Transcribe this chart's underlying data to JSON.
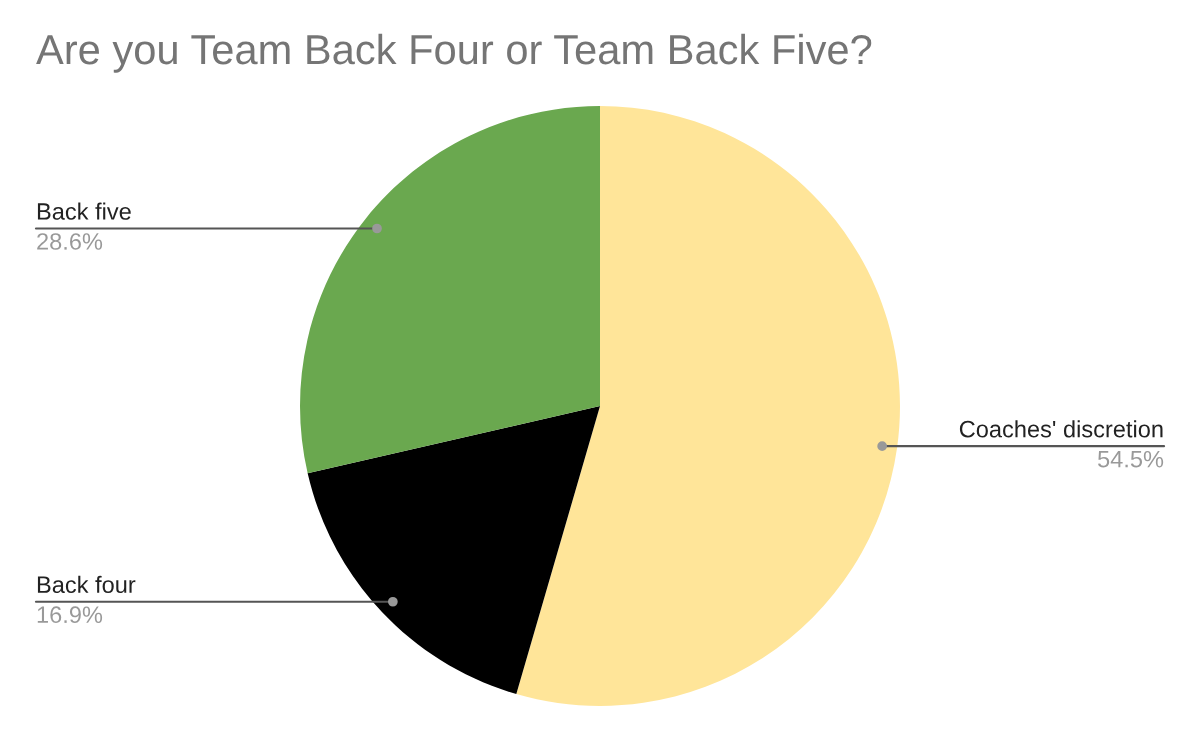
{
  "chart_data": {
    "type": "pie",
    "title": "Are you Team Back Four or Team Back Five?",
    "categories": [
      "Coaches' discretion",
      "Back four",
      "Back five"
    ],
    "values": [
      54.5,
      16.9,
      28.6
    ],
    "colors": [
      "#ffe599",
      "#000000",
      "#6aa84f"
    ],
    "value_labels": [
      "54.5%",
      "16.9%",
      "28.6%"
    ]
  }
}
